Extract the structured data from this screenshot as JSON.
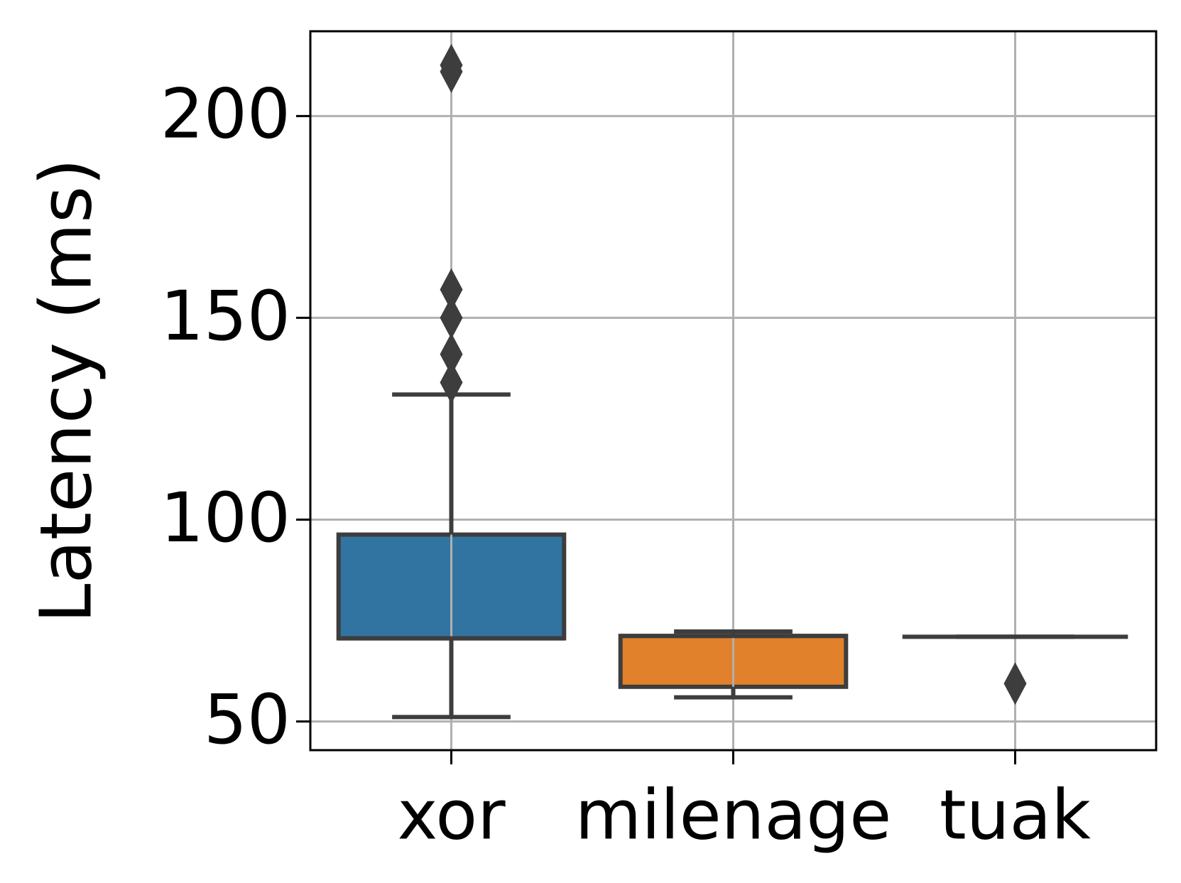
{
  "chart_data": {
    "type": "box",
    "ylabel": "Latency (ms)",
    "categories": [
      "xor",
      "milenage",
      "tuak"
    ],
    "boxes": [
      {
        "whislo": 51.1,
        "q1": 70.6,
        "med": 70.6,
        "q3": 96.3,
        "whishi": 131,
        "fliers": [
          212.6,
          211,
          157,
          150,
          141,
          134
        ],
        "color": "#3274a1"
      },
      {
        "whislo": 56,
        "q1": 58.6,
        "med": 71.2,
        "q3": 71.2,
        "whishi": 72.3,
        "fliers": [],
        "color": "#e1812c"
      },
      {
        "whislo": 71,
        "q1": 71,
        "med": 71,
        "q3": 71,
        "whishi": 71,
        "fliers": [
          59.4
        ]
      }
    ],
    "ylim": [
      42.9,
      221
    ],
    "yticks": [
      50,
      100,
      150,
      200
    ],
    "grid": true
  }
}
